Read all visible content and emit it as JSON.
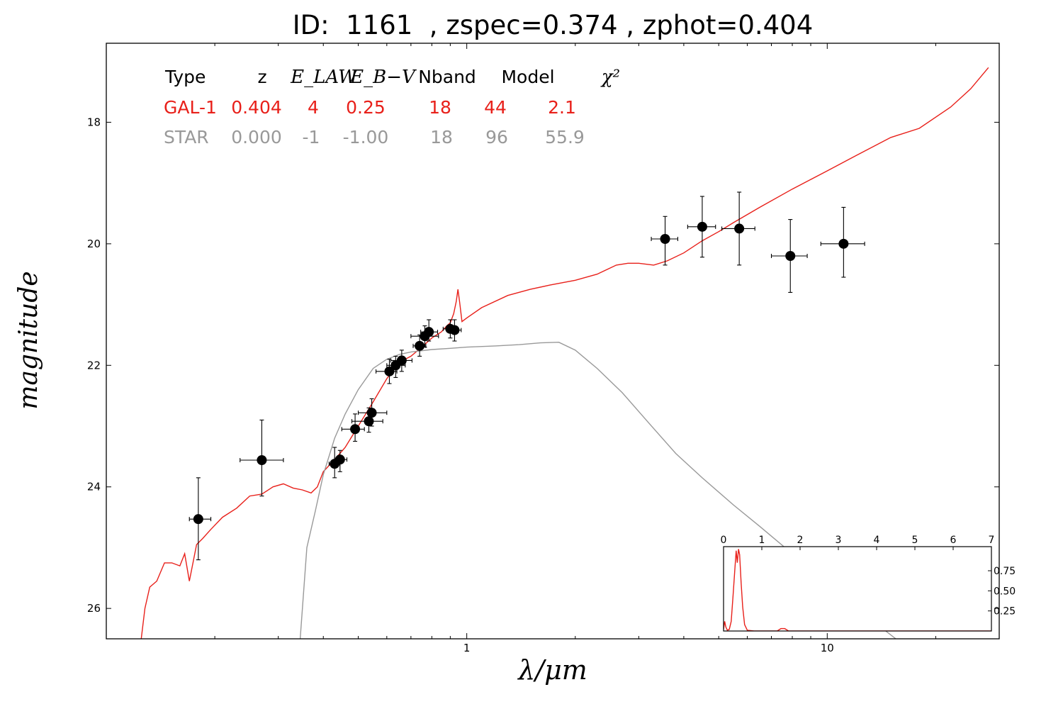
{
  "chart_data": {
    "type": "scatter",
    "title": "ID:  1161  , zspec=0.374 , zphot=0.404",
    "xlabel": "λ/μm",
    "ylabel": "magnitude",
    "x_scale": "log",
    "xlim": [
      0.1,
      30
    ],
    "ylim": [
      26.5,
      16.7
    ],
    "y_inverted": true,
    "x_ticks": [
      {
        "value": 1,
        "label": "1"
      },
      {
        "value": 10,
        "label": "10"
      }
    ],
    "y_ticks": [
      {
        "value": 18,
        "label": "18"
      },
      {
        "value": 20,
        "label": "20"
      },
      {
        "value": 22,
        "label": "22"
      },
      {
        "value": 24,
        "label": "24"
      },
      {
        "value": 26,
        "label": "26"
      }
    ],
    "legend_table": {
      "headers": [
        "Type",
        "z",
        "E_LAW",
        "E_B−V",
        "Nband",
        "Model",
        "χ²"
      ],
      "rows": [
        {
          "name": "GAL-1",
          "color": "#e8201a",
          "values": [
            "GAL-1",
            "0.404",
            "4",
            "0.25",
            "18",
            "44",
            "2.1"
          ]
        },
        {
          "name": "STAR",
          "color": "#999999",
          "values": [
            "STAR",
            "0.000",
            "-1",
            "-1.00",
            "18",
            "96",
            "55.9"
          ]
        }
      ]
    },
    "points": [
      {
        "x": 0.18,
        "y": 24.53,
        "xerr": [
          0.17,
          0.195
        ],
        "yerr": [
          23.85,
          25.2
        ]
      },
      {
        "x": 0.27,
        "y": 23.56,
        "xerr": [
          0.235,
          0.31
        ],
        "yerr": [
          22.9,
          24.15
        ]
      },
      {
        "x": 0.43,
        "y": 23.62,
        "xerr": [
          0.415,
          0.445
        ],
        "yerr": [
          23.35,
          23.85
        ]
      },
      {
        "x": 0.445,
        "y": 23.55,
        "xerr": [
          0.43,
          0.465
        ],
        "yerr": [
          23.4,
          23.75
        ]
      },
      {
        "x": 0.49,
        "y": 23.05,
        "xerr": [
          0.45,
          0.52
        ],
        "yerr": [
          22.8,
          23.25
        ]
      },
      {
        "x": 0.535,
        "y": 22.92,
        "xerr": [
          0.48,
          0.585
        ],
        "yerr": [
          22.7,
          23.1
        ]
      },
      {
        "x": 0.545,
        "y": 22.78,
        "xerr": [
          0.5,
          0.6
        ],
        "yerr": [
          22.55,
          23.0
        ]
      },
      {
        "x": 0.61,
        "y": 22.1,
        "xerr": [
          0.56,
          0.64
        ],
        "yerr": [
          21.9,
          22.3
        ]
      },
      {
        "x": 0.635,
        "y": 22.0,
        "xerr": [
          0.6,
          0.675
        ],
        "yerr": [
          21.85,
          22.2
        ]
      },
      {
        "x": 0.66,
        "y": 21.92,
        "xerr": [
          0.615,
          0.705
        ],
        "yerr": [
          21.75,
          22.1
        ]
      },
      {
        "x": 0.74,
        "y": 21.68,
        "xerr": [
          0.71,
          0.77
        ],
        "yerr": [
          21.5,
          21.85
        ]
      },
      {
        "x": 0.765,
        "y": 21.52,
        "xerr": [
          0.7,
          0.835
        ],
        "yerr": [
          21.35,
          21.7
        ]
      },
      {
        "x": 0.785,
        "y": 21.45,
        "xerr": [
          0.745,
          0.83
        ],
        "yerr": [
          21.25,
          21.6
        ]
      },
      {
        "x": 0.9,
        "y": 21.4,
        "xerr": [
          0.86,
          0.94
        ],
        "yerr": [
          21.25,
          21.55
        ]
      },
      {
        "x": 0.925,
        "y": 21.42,
        "xerr": [
          0.88,
          0.965
        ],
        "yerr": [
          21.25,
          21.6
        ]
      },
      {
        "x": 3.55,
        "y": 19.92,
        "xerr": [
          3.25,
          3.85
        ],
        "yerr": [
          19.55,
          20.35
        ]
      },
      {
        "x": 4.5,
        "y": 19.72,
        "xerr": [
          4.1,
          4.9
        ],
        "yerr": [
          19.22,
          20.22
        ]
      },
      {
        "x": 5.7,
        "y": 19.75,
        "xerr": [
          5.1,
          6.3
        ],
        "yerr": [
          19.15,
          20.35
        ]
      },
      {
        "x": 7.9,
        "y": 20.2,
        "xerr": [
          7.0,
          8.8
        ],
        "yerr": [
          19.6,
          20.8
        ]
      },
      {
        "x": 11.1,
        "y": 20.0,
        "xerr": [
          9.6,
          12.7
        ],
        "yerr": [
          19.4,
          20.55
        ]
      }
    ],
    "series": [
      {
        "name": "GAL-1",
        "color": "#e8201a",
        "points": [
          [
            0.125,
            26.5
          ],
          [
            0.128,
            26.0
          ],
          [
            0.132,
            25.65
          ],
          [
            0.138,
            25.55
          ],
          [
            0.145,
            25.25
          ],
          [
            0.152,
            25.25
          ],
          [
            0.16,
            25.3
          ],
          [
            0.165,
            25.1
          ],
          [
            0.17,
            25.55
          ],
          [
            0.178,
            24.95
          ],
          [
            0.185,
            24.85
          ],
          [
            0.195,
            24.7
          ],
          [
            0.21,
            24.5
          ],
          [
            0.23,
            24.35
          ],
          [
            0.25,
            24.15
          ],
          [
            0.27,
            24.12
          ],
          [
            0.29,
            24.0
          ],
          [
            0.31,
            23.95
          ],
          [
            0.33,
            24.02
          ],
          [
            0.35,
            24.05
          ],
          [
            0.37,
            24.1
          ],
          [
            0.385,
            24.0
          ],
          [
            0.4,
            23.75
          ],
          [
            0.43,
            23.55
          ],
          [
            0.46,
            23.35
          ],
          [
            0.5,
            23.0
          ],
          [
            0.55,
            22.6
          ],
          [
            0.6,
            22.22
          ],
          [
            0.65,
            21.95
          ],
          [
            0.7,
            21.85
          ],
          [
            0.75,
            21.7
          ],
          [
            0.8,
            21.55
          ],
          [
            0.85,
            21.45
          ],
          [
            0.88,
            21.35
          ],
          [
            0.9,
            21.3
          ],
          [
            0.92,
            21.15
          ],
          [
            0.935,
            20.95
          ],
          [
            0.945,
            20.75
          ],
          [
            0.955,
            20.95
          ],
          [
            0.97,
            21.28
          ],
          [
            1.0,
            21.22
          ],
          [
            1.1,
            21.05
          ],
          [
            1.3,
            20.85
          ],
          [
            1.5,
            20.75
          ],
          [
            1.7,
            20.68
          ],
          [
            2.0,
            20.6
          ],
          [
            2.3,
            20.5
          ],
          [
            2.6,
            20.35
          ],
          [
            2.8,
            20.32
          ],
          [
            3.0,
            20.32
          ],
          [
            3.3,
            20.35
          ],
          [
            3.6,
            20.28
          ],
          [
            4.0,
            20.15
          ],
          [
            4.5,
            19.95
          ],
          [
            5.0,
            19.8
          ],
          [
            5.5,
            19.65
          ],
          [
            6.5,
            19.4
          ],
          [
            8.0,
            19.1
          ],
          [
            10.0,
            18.8
          ],
          [
            12.0,
            18.55
          ],
          [
            15.0,
            18.25
          ],
          [
            18.0,
            18.1
          ],
          [
            22.0,
            17.75
          ],
          [
            25.0,
            17.45
          ],
          [
            28.0,
            17.1
          ]
        ]
      },
      {
        "name": "STAR",
        "color": "#999999",
        "points": [
          [
            0.345,
            26.5
          ],
          [
            0.36,
            25.0
          ],
          [
            0.38,
            24.4
          ],
          [
            0.4,
            23.8
          ],
          [
            0.43,
            23.2
          ],
          [
            0.46,
            22.8
          ],
          [
            0.5,
            22.4
          ],
          [
            0.55,
            22.05
          ],
          [
            0.6,
            21.9
          ],
          [
            0.65,
            21.82
          ],
          [
            0.7,
            21.78
          ],
          [
            0.8,
            21.74
          ],
          [
            0.9,
            21.72
          ],
          [
            1.0,
            21.7
          ],
          [
            1.2,
            21.68
          ],
          [
            1.4,
            21.66
          ],
          [
            1.6,
            21.63
          ],
          [
            1.8,
            21.62
          ],
          [
            2.0,
            21.75
          ],
          [
            2.3,
            22.05
          ],
          [
            2.7,
            22.45
          ],
          [
            3.2,
            22.95
          ],
          [
            3.8,
            23.45
          ],
          [
            4.5,
            23.85
          ],
          [
            5.5,
            24.3
          ],
          [
            6.5,
            24.65
          ],
          [
            8.0,
            25.1
          ],
          [
            10.0,
            25.6
          ],
          [
            13.0,
            26.15
          ],
          [
            15.5,
            26.5
          ]
        ]
      }
    ],
    "inset": {
      "xlabel": "",
      "ylabel": "",
      "xlim": [
        0,
        7
      ],
      "ylim": [
        0,
        1.05
      ],
      "x_ticks": [
        {
          "value": 0,
          "label": "0"
        },
        {
          "value": 1,
          "label": "1"
        },
        {
          "value": 2,
          "label": "2"
        },
        {
          "value": 3,
          "label": "3"
        },
        {
          "value": 4,
          "label": "4"
        },
        {
          "value": 5,
          "label": "5"
        },
        {
          "value": 6,
          "label": "6"
        },
        {
          "value": 7,
          "label": "7"
        }
      ],
      "y_ticks": [
        {
          "value": 0.25,
          "label": "0.25"
        },
        {
          "value": 0.5,
          "label": "0.50"
        },
        {
          "value": 0.75,
          "label": "0.75"
        }
      ],
      "pdf_color": "#e8201a",
      "pdf": [
        [
          0,
          0.02
        ],
        [
          0.03,
          0.12
        ],
        [
          0.06,
          0.05
        ],
        [
          0.1,
          0.01
        ],
        [
          0.15,
          0.02
        ],
        [
          0.2,
          0.12
        ],
        [
          0.25,
          0.45
        ],
        [
          0.3,
          0.8
        ],
        [
          0.33,
          1.0
        ],
        [
          0.36,
          0.85
        ],
        [
          0.39,
          1.02
        ],
        [
          0.42,
          0.95
        ],
        [
          0.46,
          0.6
        ],
        [
          0.5,
          0.3
        ],
        [
          0.55,
          0.08
        ],
        [
          0.62,
          0.01
        ],
        [
          0.8,
          0.0
        ],
        [
          1.4,
          0.0
        ],
        [
          1.5,
          0.03
        ],
        [
          1.6,
          0.03
        ],
        [
          1.7,
          0.0
        ],
        [
          7,
          0.0
        ]
      ]
    }
  }
}
